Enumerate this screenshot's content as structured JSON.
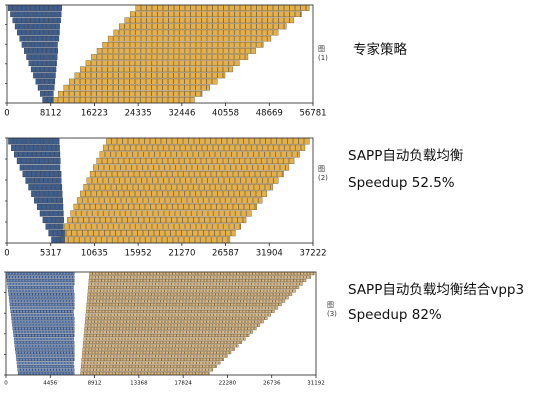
{
  "chart_data": [
    {
      "type": "gantt",
      "fig_label": "图 (1)",
      "caption_lines": [
        "专家策略"
      ],
      "xticks": [
        0,
        8112,
        16223,
        24335,
        32446,
        40558,
        48669,
        56781
      ],
      "xlim": [
        0,
        56781
      ],
      "grid": false,
      "series": [
        {
          "name": "",
          "color": "#3f5e8c"
        },
        {
          "name": "",
          "color": "#e3b04b"
        }
      ]
    },
    {
      "type": "gantt",
      "fig_label": "图 (2)",
      "caption_lines": [
        "SAPP自动负载均衡",
        "Speedup 52.5%"
      ],
      "xticks": [
        0,
        5317,
        10635,
        15952,
        21270,
        26587,
        31904,
        37222
      ],
      "xlim": [
        0,
        37222
      ],
      "grid": false,
      "series": [
        {
          "name": "",
          "color": "#3f5e8c"
        },
        {
          "name": "",
          "color": "#e3b04b"
        }
      ]
    },
    {
      "type": "gantt",
      "fig_label": "图 (3)",
      "caption_lines": [
        "SAPP自动负载均衡结合vpp3",
        "Speedup 82%"
      ],
      "xticks": [
        0,
        4456,
        8912,
        13368,
        17824,
        22280,
        26736,
        31192
      ],
      "xlim": [
        0,
        31192
      ],
      "grid": false,
      "series": [
        {
          "name": "",
          "color": "#6d8fc4"
        },
        {
          "name": "",
          "color": "#d9b784"
        }
      ]
    }
  ]
}
